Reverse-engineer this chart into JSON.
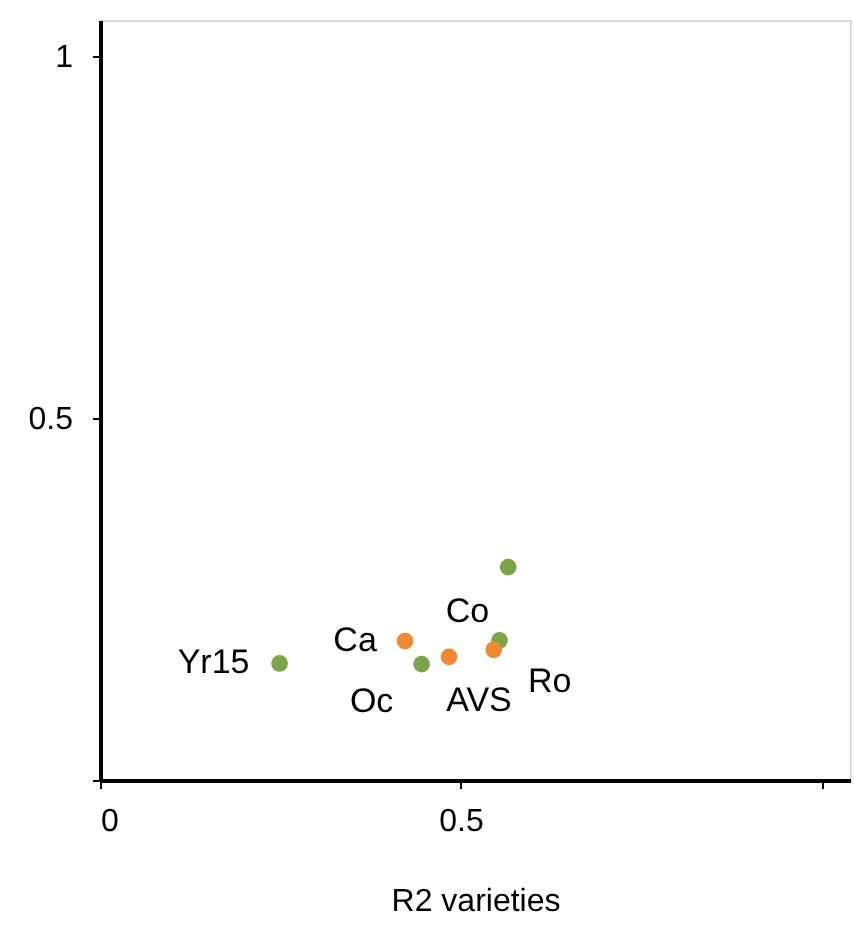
{
  "chart_data": {
    "type": "scatter",
    "xlabel": "R2 varieties",
    "series": [
      {
        "color": "#7ea44a",
        "x": [
          0.249,
          0.446,
          0.554,
          0.566
        ],
        "values": [
          0.161,
          0.16,
          0.193,
          0.294
        ]
      },
      {
        "color": "#ee8833",
        "x": [
          0.423,
          0.484,
          0.546
        ],
        "values": [
          0.192,
          0.17,
          0.18
        ]
      }
    ],
    "xlim": [
      0,
      1.04
    ],
    "ylim": [
      0,
      1.05
    ],
    "xticks": [
      0,
      0.5,
      {
        "value": 1,
        "label": null
      }
    ],
    "yticks": [
      {
        "value": 0,
        "label": null
      },
      0.5,
      1
    ],
    "annotations": [
      {
        "text": "Yr15",
        "x": 0.249,
        "y": 0.161
      },
      {
        "text": "Ca",
        "x": 0.423,
        "y": 0.192
      },
      {
        "text": "Co",
        "x": 0.554,
        "y": 0.193
      },
      {
        "text": "Oc",
        "x": 0.446,
        "y": 0.16
      },
      {
        "text": "AVS",
        "x": 0.484,
        "y": 0.17
      },
      {
        "text": "Ro",
        "x": 0.546,
        "y": 0.18
      }
    ],
    "grid": false,
    "marker": "circle"
  }
}
